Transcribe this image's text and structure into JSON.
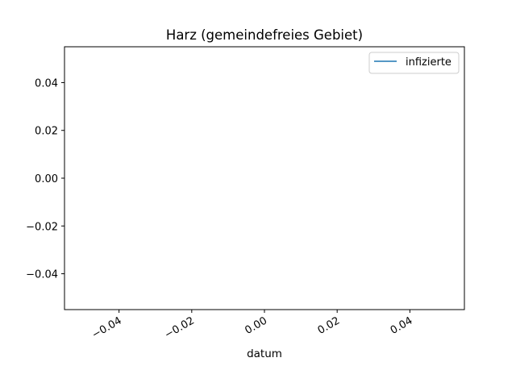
{
  "chart_data": {
    "type": "line",
    "title": "Harz (gemeindefreies Gebiet)",
    "xlabel": "datum",
    "ylabel": "",
    "xlim": [
      -0.055,
      0.055
    ],
    "ylim": [
      -0.055,
      0.055
    ],
    "x_ticks": [
      -0.04,
      -0.02,
      0.0,
      0.02,
      0.04
    ],
    "x_tick_labels": [
      "−0.04",
      "−0.02",
      "0.00",
      "0.02",
      "0.04"
    ],
    "y_ticks": [
      0.04,
      0.02,
      0.0,
      -0.02,
      -0.04
    ],
    "y_tick_labels": [
      "0.04",
      "0.02",
      "0.00",
      "−0.02",
      "−0.04"
    ],
    "grid": false,
    "legend_position": "top-right",
    "series": [
      {
        "name": "infizierte",
        "color": "#1f77b4",
        "x": [],
        "y": []
      }
    ]
  }
}
